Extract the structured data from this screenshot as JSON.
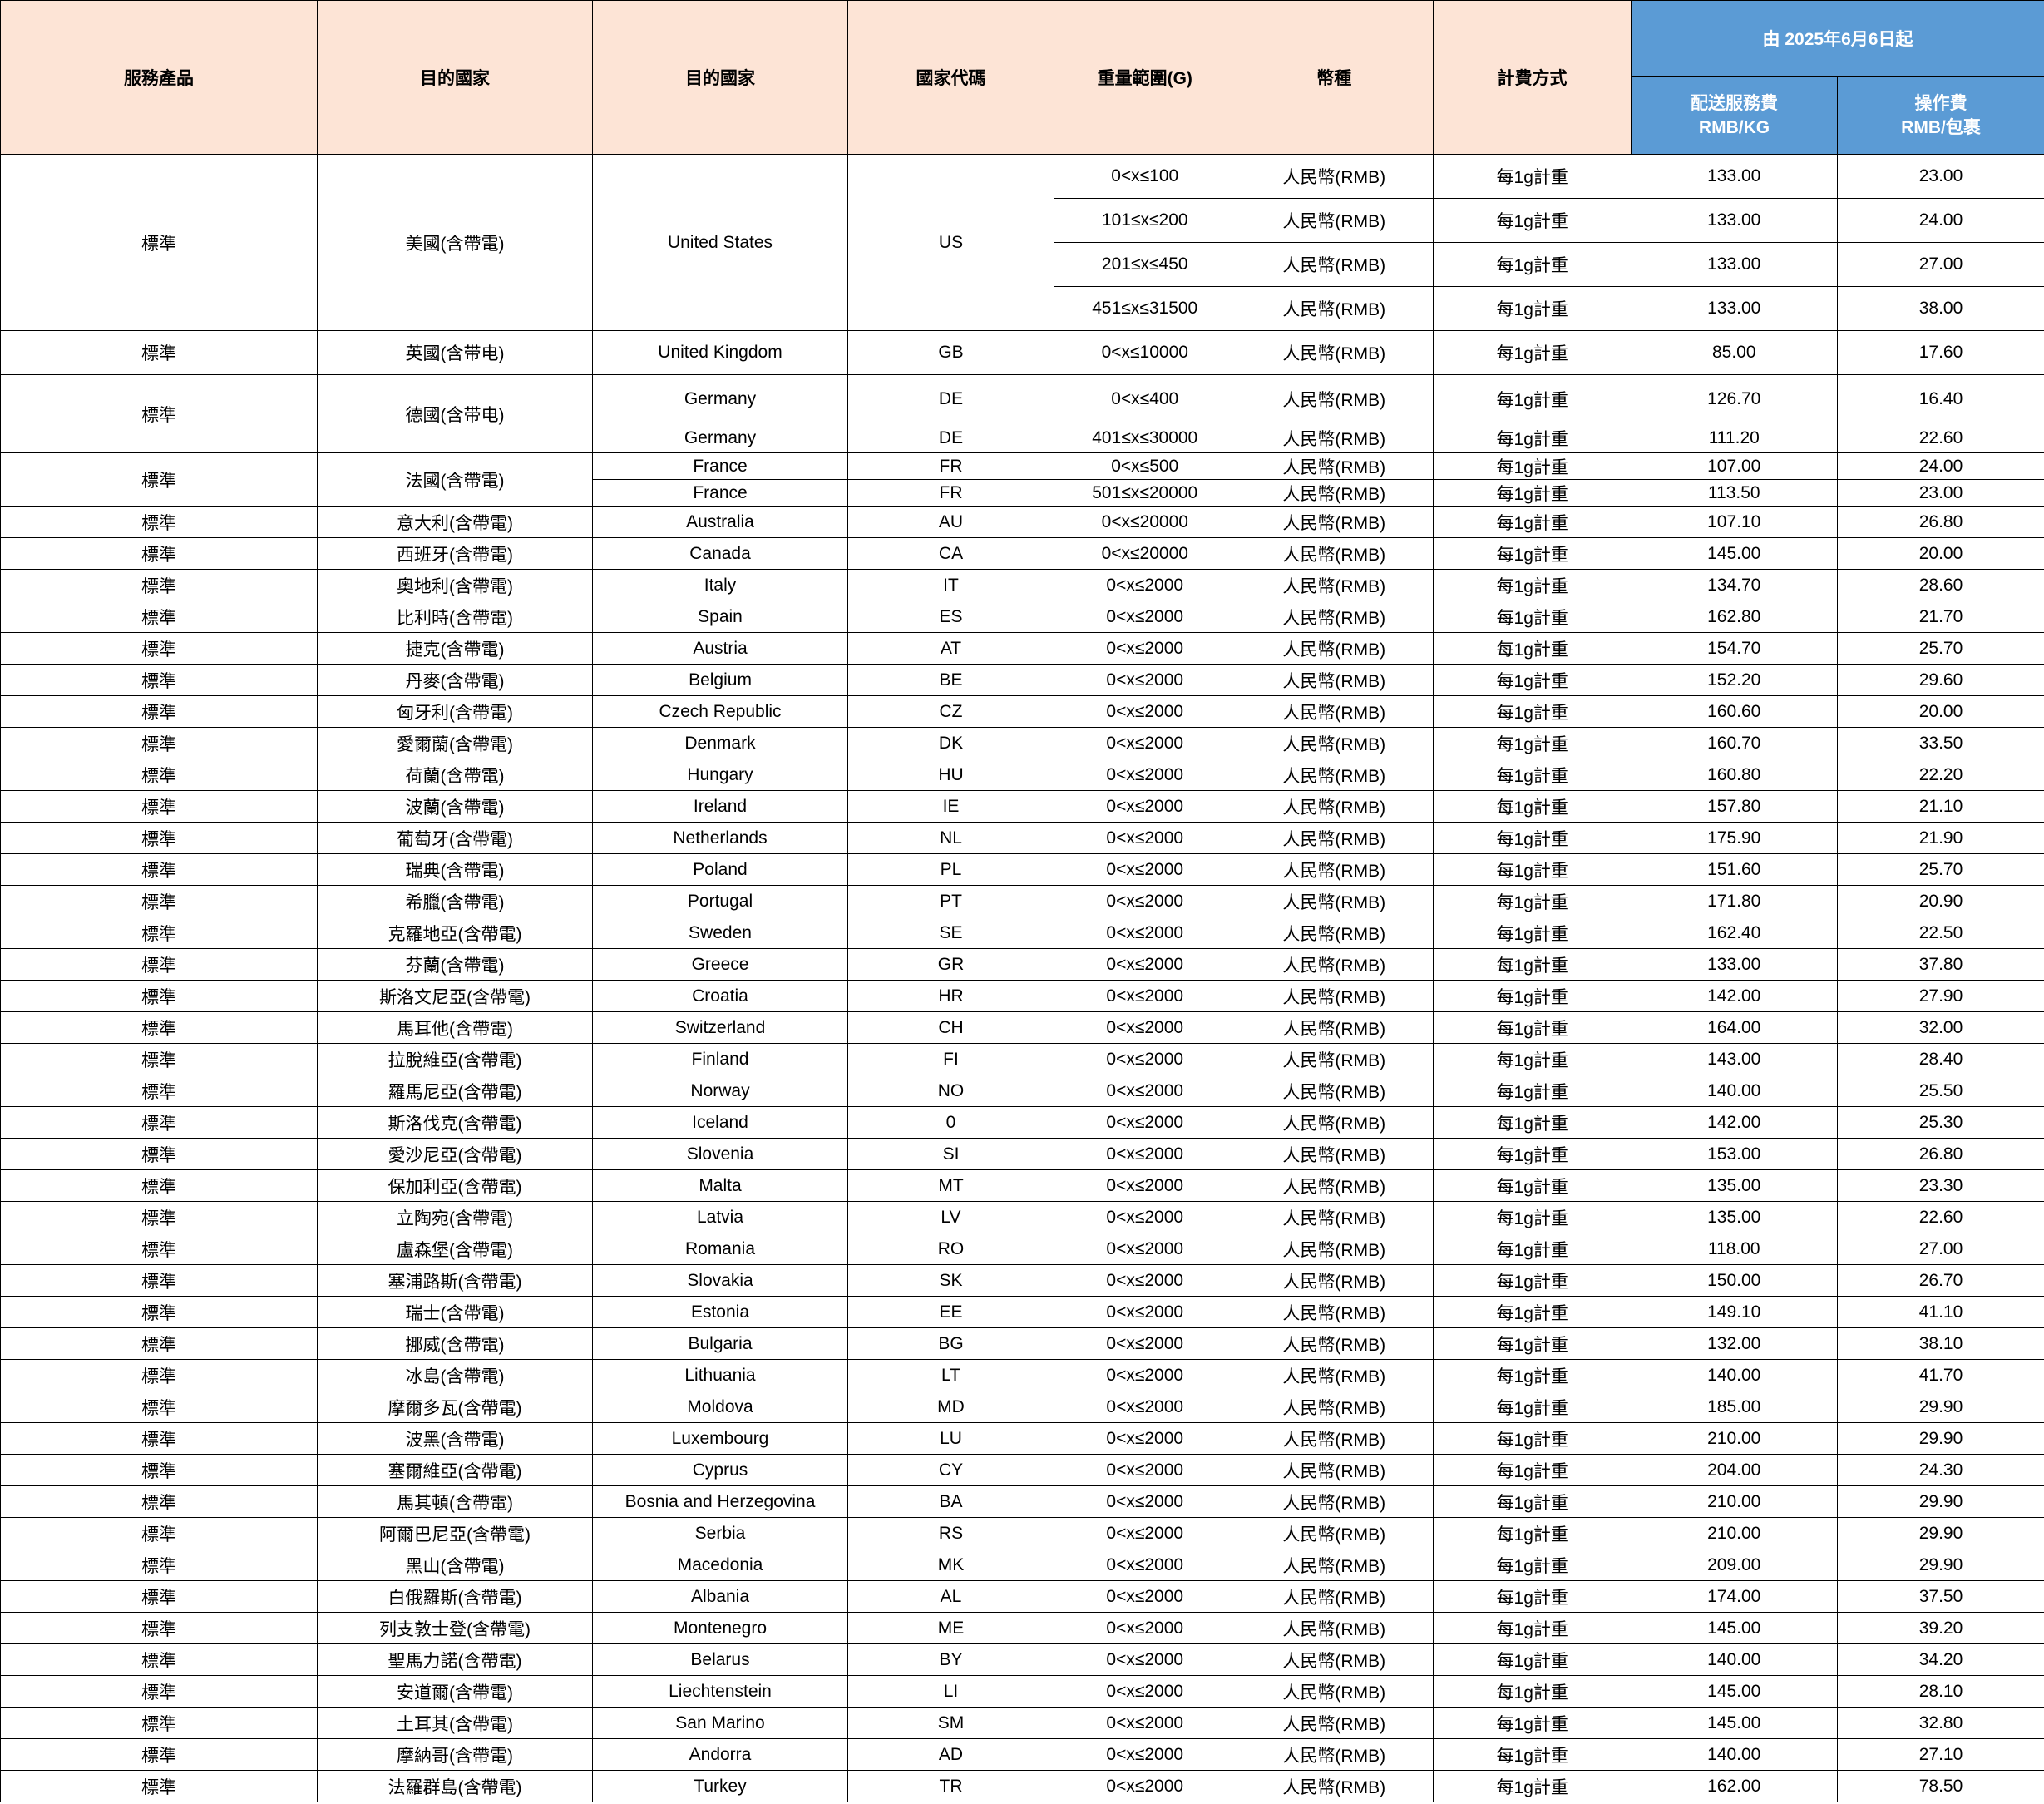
{
  "header": {
    "service_product": "服務產品",
    "destination_cn": "目的國家",
    "destination_en": "目的國家",
    "country_code": "國家代碼",
    "weight_range": "重量範圍(G)",
    "currency": "幣種",
    "billing_method": "計費方式",
    "effective_from": "由 2025年6月6日起",
    "delivery_fee_l1": "配送服務費",
    "delivery_fee_l2": "RMB/KG",
    "handling_fee_l1": "操作費",
    "handling_fee_l2": "RMB/包裹"
  },
  "colors": {
    "header_bg": "#fde4d6",
    "header_blue": "#5b9bd5"
  },
  "groups": [
    {
      "product": "標準",
      "dest_cn": "美國(含帶電)",
      "dest_en": "United States",
      "code": "US",
      "entries": [
        {
          "weight": "0<x≤100",
          "currency": "人民幣(RMB)",
          "billing": "每1g計重",
          "delivery_fee": "133.00",
          "handling_fee": "23.00"
        },
        {
          "weight": "101≤x≤200",
          "currency": "人民幣(RMB)",
          "billing": "每1g計重",
          "delivery_fee": "133.00",
          "handling_fee": "24.00"
        },
        {
          "weight": "201≤x≤450",
          "currency": "人民幣(RMB)",
          "billing": "每1g計重",
          "delivery_fee": "133.00",
          "handling_fee": "27.00"
        },
        {
          "weight": "451≤x≤31500",
          "currency": "人民幣(RMB)",
          "billing": "每1g計重",
          "delivery_fee": "133.00",
          "handling_fee": "38.00"
        }
      ]
    },
    {
      "product": "標準",
      "dest_cn": "英國(含带电)",
      "entries": [
        {
          "dest_en": "United Kingdom",
          "code": "GB",
          "weight": "0<x≤10000",
          "currency": "人民幣(RMB)",
          "billing": "每1g計重",
          "delivery_fee": "85.00",
          "handling_fee": "17.60"
        }
      ]
    },
    {
      "product": "標準",
      "dest_cn": "德國(含带电)",
      "entries": [
        {
          "dest_en": "Germany",
          "code": "DE",
          "weight": "0<x≤400",
          "currency": "人民幣(RMB)",
          "billing": "每1g計重",
          "delivery_fee": "126.70",
          "handling_fee": "16.40"
        },
        {
          "dest_en": "Germany",
          "code": "DE",
          "weight": "401≤x≤30000",
          "currency": "人民幣(RMB)",
          "billing": "每1g計重",
          "delivery_fee": "111.20",
          "handling_fee": "22.60"
        }
      ]
    },
    {
      "product": "標準",
      "dest_cn": "法國(含帶電)",
      "entries": [
        {
          "dest_en": "France",
          "code": "FR",
          "weight": "0<x≤500",
          "currency": "人民幣(RMB)",
          "billing": "每1g計重",
          "delivery_fee": "107.00",
          "handling_fee": "24.00"
        },
        {
          "dest_en": "France",
          "code": "FR",
          "weight": "501≤x≤20000",
          "currency": "人民幣(RMB)",
          "billing": "每1g計重",
          "delivery_fee": "113.50",
          "handling_fee": "23.00"
        }
      ]
    },
    {
      "product": "標準",
      "dest_cn": "意大利(含帶電)",
      "entries": [
        {
          "dest_en": "Australia",
          "code": "AU",
          "weight": "0<x≤20000",
          "currency": "人民幣(RMB)",
          "billing": "每1g計重",
          "delivery_fee": "107.10",
          "handling_fee": "26.80"
        }
      ]
    },
    {
      "product": "標準",
      "dest_cn": "西班牙(含帶電)",
      "entries": [
        {
          "dest_en": "Canada",
          "code": "CA",
          "weight": "0<x≤20000",
          "currency": "人民幣(RMB)",
          "billing": "每1g計重",
          "delivery_fee": "145.00",
          "handling_fee": "20.00"
        }
      ]
    },
    {
      "product": "標準",
      "dest_cn": "奧地利(含帶電)",
      "entries": [
        {
          "dest_en": "Italy",
          "code": "IT",
          "weight": "0<x≤2000",
          "currency": "人民幣(RMB)",
          "billing": "每1g計重",
          "delivery_fee": "134.70",
          "handling_fee": "28.60"
        }
      ]
    },
    {
      "product": "標準",
      "dest_cn": "比利時(含帶電)",
      "entries": [
        {
          "dest_en": "Spain",
          "code": "ES",
          "weight": "0<x≤2000",
          "currency": "人民幣(RMB)",
          "billing": "每1g計重",
          "delivery_fee": "162.80",
          "handling_fee": "21.70"
        }
      ]
    },
    {
      "product": "標準",
      "dest_cn": "捷克(含帶電)",
      "entries": [
        {
          "dest_en": "Austria",
          "code": "AT",
          "weight": "0<x≤2000",
          "currency": "人民幣(RMB)",
          "billing": "每1g計重",
          "delivery_fee": "154.70",
          "handling_fee": "25.70"
        }
      ]
    },
    {
      "product": "標準",
      "dest_cn": "丹麥(含帶電)",
      "entries": [
        {
          "dest_en": "Belgium",
          "code": "BE",
          "weight": "0<x≤2000",
          "currency": "人民幣(RMB)",
          "billing": "每1g計重",
          "delivery_fee": "152.20",
          "handling_fee": "29.60"
        }
      ]
    },
    {
      "product": "標準",
      "dest_cn": "匈牙利(含帶電)",
      "entries": [
        {
          "dest_en": "Czech Republic",
          "code": "CZ",
          "weight": "0<x≤2000",
          "currency": "人民幣(RMB)",
          "billing": "每1g計重",
          "delivery_fee": "160.60",
          "handling_fee": "20.00"
        }
      ]
    },
    {
      "product": "標準",
      "dest_cn": "愛爾蘭(含帶電)",
      "entries": [
        {
          "dest_en": "Denmark",
          "code": "DK",
          "weight": "0<x≤2000",
          "currency": "人民幣(RMB)",
          "billing": "每1g計重",
          "delivery_fee": "160.70",
          "handling_fee": "33.50"
        }
      ]
    },
    {
      "product": "標準",
      "dest_cn": "荷蘭(含帶電)",
      "entries": [
        {
          "dest_en": "Hungary",
          "code": "HU",
          "weight": "0<x≤2000",
          "currency": "人民幣(RMB)",
          "billing": "每1g計重",
          "delivery_fee": "160.80",
          "handling_fee": "22.20"
        }
      ]
    },
    {
      "product": "標準",
      "dest_cn": "波蘭(含帶電)",
      "entries": [
        {
          "dest_en": "Ireland",
          "code": "IE",
          "weight": "0<x≤2000",
          "currency": "人民幣(RMB)",
          "billing": "每1g計重",
          "delivery_fee": "157.80",
          "handling_fee": "21.10"
        }
      ]
    },
    {
      "product": "標準",
      "dest_cn": "葡萄牙(含帶電)",
      "entries": [
        {
          "dest_en": "Netherlands",
          "code": "NL",
          "weight": "0<x≤2000",
          "currency": "人民幣(RMB)",
          "billing": "每1g計重",
          "delivery_fee": "175.90",
          "handling_fee": "21.90"
        }
      ]
    },
    {
      "product": "標準",
      "dest_cn": "瑞典(含帶電)",
      "entries": [
        {
          "dest_en": "Poland",
          "code": "PL",
          "weight": "0<x≤2000",
          "currency": "人民幣(RMB)",
          "billing": "每1g計重",
          "delivery_fee": "151.60",
          "handling_fee": "25.70"
        }
      ]
    },
    {
      "product": "標準",
      "dest_cn": "希臘(含帶電)",
      "entries": [
        {
          "dest_en": "Portugal",
          "code": "PT",
          "weight": "0<x≤2000",
          "currency": "人民幣(RMB)",
          "billing": "每1g計重",
          "delivery_fee": "171.80",
          "handling_fee": "20.90"
        }
      ]
    },
    {
      "product": "標準",
      "dest_cn": "克羅地亞(含帶電)",
      "entries": [
        {
          "dest_en": "Sweden",
          "code": "SE",
          "weight": "0<x≤2000",
          "currency": "人民幣(RMB)",
          "billing": "每1g計重",
          "delivery_fee": "162.40",
          "handling_fee": "22.50"
        }
      ]
    },
    {
      "product": "標準",
      "dest_cn": "芬蘭(含帶電)",
      "entries": [
        {
          "dest_en": "Greece",
          "code": "GR",
          "weight": "0<x≤2000",
          "currency": "人民幣(RMB)",
          "billing": "每1g計重",
          "delivery_fee": "133.00",
          "handling_fee": "37.80"
        }
      ]
    },
    {
      "product": "標準",
      "dest_cn": "斯洛文尼亞(含帶電)",
      "entries": [
        {
          "dest_en": "Croatia",
          "code": "HR",
          "weight": "0<x≤2000",
          "currency": "人民幣(RMB)",
          "billing": "每1g計重",
          "delivery_fee": "142.00",
          "handling_fee": "27.90"
        }
      ]
    },
    {
      "product": "標準",
      "dest_cn": "馬耳他(含帶電)",
      "entries": [
        {
          "dest_en": "Switzerland",
          "code": "CH",
          "weight": "0<x≤2000",
          "currency": "人民幣(RMB)",
          "billing": "每1g計重",
          "delivery_fee": "164.00",
          "handling_fee": "32.00"
        }
      ]
    },
    {
      "product": "標準",
      "dest_cn": "拉脫維亞(含帶電)",
      "entries": [
        {
          "dest_en": "Finland",
          "code": "FI",
          "weight": "0<x≤2000",
          "currency": "人民幣(RMB)",
          "billing": "每1g計重",
          "delivery_fee": "143.00",
          "handling_fee": "28.40"
        }
      ]
    },
    {
      "product": "標準",
      "dest_cn": "羅馬尼亞(含帶電)",
      "entries": [
        {
          "dest_en": "Norway",
          "code": "NO",
          "weight": "0<x≤2000",
          "currency": "人民幣(RMB)",
          "billing": "每1g計重",
          "delivery_fee": "140.00",
          "handling_fee": "25.50"
        }
      ]
    },
    {
      "product": "標準",
      "dest_cn": "斯洛伐克(含帶電)",
      "entries": [
        {
          "dest_en": "Iceland",
          "code": "0",
          "weight": "0<x≤2000",
          "currency": "人民幣(RMB)",
          "billing": "每1g計重",
          "delivery_fee": "142.00",
          "handling_fee": "25.30"
        }
      ]
    },
    {
      "product": "標準",
      "dest_cn": "愛沙尼亞(含帶電)",
      "entries": [
        {
          "dest_en": "Slovenia",
          "code": "SI",
          "weight": "0<x≤2000",
          "currency": "人民幣(RMB)",
          "billing": "每1g計重",
          "delivery_fee": "153.00",
          "handling_fee": "26.80"
        }
      ]
    },
    {
      "product": "標準",
      "dest_cn": "保加利亞(含帶電)",
      "entries": [
        {
          "dest_en": "Malta",
          "code": "MT",
          "weight": "0<x≤2000",
          "currency": "人民幣(RMB)",
          "billing": "每1g計重",
          "delivery_fee": "135.00",
          "handling_fee": "23.30"
        }
      ]
    },
    {
      "product": "標準",
      "dest_cn": "立陶宛(含帶電)",
      "entries": [
        {
          "dest_en": "Latvia",
          "code": "LV",
          "weight": "0<x≤2000",
          "currency": "人民幣(RMB)",
          "billing": "每1g計重",
          "delivery_fee": "135.00",
          "handling_fee": "22.60"
        }
      ]
    },
    {
      "product": "標準",
      "dest_cn": "盧森堡(含帶電)",
      "entries": [
        {
          "dest_en": "Romania",
          "code": "RO",
          "weight": "0<x≤2000",
          "currency": "人民幣(RMB)",
          "billing": "每1g計重",
          "delivery_fee": "118.00",
          "handling_fee": "27.00"
        }
      ]
    },
    {
      "product": "標準",
      "dest_cn": "塞浦路斯(含帶電)",
      "entries": [
        {
          "dest_en": "Slovakia",
          "code": "SK",
          "weight": "0<x≤2000",
          "currency": "人民幣(RMB)",
          "billing": "每1g計重",
          "delivery_fee": "150.00",
          "handling_fee": "26.70"
        }
      ]
    },
    {
      "product": "標準",
      "dest_cn": "瑞士(含帶電)",
      "entries": [
        {
          "dest_en": "Estonia",
          "code": "EE",
          "weight": "0<x≤2000",
          "currency": "人民幣(RMB)",
          "billing": "每1g計重",
          "delivery_fee": "149.10",
          "handling_fee": "41.10"
        }
      ]
    },
    {
      "product": "標準",
      "dest_cn": "挪威(含帶電)",
      "entries": [
        {
          "dest_en": "Bulgaria",
          "code": "BG",
          "weight": "0<x≤2000",
          "currency": "人民幣(RMB)",
          "billing": "每1g計重",
          "delivery_fee": "132.00",
          "handling_fee": "38.10"
        }
      ]
    },
    {
      "product": "標準",
      "dest_cn": "冰島(含帶電)",
      "entries": [
        {
          "dest_en": "Lithuania",
          "code": "LT",
          "weight": "0<x≤2000",
          "currency": "人民幣(RMB)",
          "billing": "每1g計重",
          "delivery_fee": "140.00",
          "handling_fee": "41.70"
        }
      ]
    },
    {
      "product": "標準",
      "dest_cn": "摩爾多瓦(含帶電)",
      "entries": [
        {
          "dest_en": "Moldova",
          "code": "MD",
          "weight": "0<x≤2000",
          "currency": "人民幣(RMB)",
          "billing": "每1g計重",
          "delivery_fee": "185.00",
          "handling_fee": "29.90"
        }
      ]
    },
    {
      "product": "標準",
      "dest_cn": "波黑(含帶電)",
      "entries": [
        {
          "dest_en": "Luxembourg",
          "code": "LU",
          "weight": "0<x≤2000",
          "currency": "人民幣(RMB)",
          "billing": "每1g計重",
          "delivery_fee": "210.00",
          "handling_fee": "29.90"
        }
      ]
    },
    {
      "product": "標準",
      "dest_cn": "塞爾維亞(含帶電)",
      "entries": [
        {
          "dest_en": "Cyprus",
          "code": "CY",
          "weight": "0<x≤2000",
          "currency": "人民幣(RMB)",
          "billing": "每1g計重",
          "delivery_fee": "204.00",
          "handling_fee": "24.30"
        }
      ]
    },
    {
      "product": "標準",
      "dest_cn": "馬其頓(含帶電)",
      "entries": [
        {
          "dest_en": "Bosnia and Herzegovina",
          "code": "BA",
          "weight": "0<x≤2000",
          "currency": "人民幣(RMB)",
          "billing": "每1g計重",
          "delivery_fee": "210.00",
          "handling_fee": "29.90"
        }
      ]
    },
    {
      "product": "標準",
      "dest_cn": "阿爾巴尼亞(含帶電)",
      "entries": [
        {
          "dest_en": "Serbia",
          "code": "RS",
          "weight": "0<x≤2000",
          "currency": "人民幣(RMB)",
          "billing": "每1g計重",
          "delivery_fee": "210.00",
          "handling_fee": "29.90"
        }
      ]
    },
    {
      "product": "標準",
      "dest_cn": "黑山(含帶電)",
      "entries": [
        {
          "dest_en": "Macedonia",
          "code": "MK",
          "weight": "0<x≤2000",
          "currency": "人民幣(RMB)",
          "billing": "每1g計重",
          "delivery_fee": "209.00",
          "handling_fee": "29.90"
        }
      ]
    },
    {
      "product": "標準",
      "dest_cn": "白俄羅斯(含帶電)",
      "entries": [
        {
          "dest_en": "Albania",
          "code": "AL",
          "weight": "0<x≤2000",
          "currency": "人民幣(RMB)",
          "billing": "每1g計重",
          "delivery_fee": "174.00",
          "handling_fee": "37.50"
        }
      ]
    },
    {
      "product": "標準",
      "dest_cn": "列支敦士登(含帶電)",
      "entries": [
        {
          "dest_en": "Montenegro",
          "code": "ME",
          "weight": "0<x≤2000",
          "currency": "人民幣(RMB)",
          "billing": "每1g計重",
          "delivery_fee": "145.00",
          "handling_fee": "39.20"
        }
      ]
    },
    {
      "product": "標準",
      "dest_cn": "聖馬力諾(含帶電)",
      "entries": [
        {
          "dest_en": "Belarus",
          "code": "BY",
          "weight": "0<x≤2000",
          "currency": "人民幣(RMB)",
          "billing": "每1g計重",
          "delivery_fee": "140.00",
          "handling_fee": "34.20"
        }
      ]
    },
    {
      "product": "標準",
      "dest_cn": "安道爾(含帶電)",
      "entries": [
        {
          "dest_en": "Liechtenstein",
          "code": "LI",
          "weight": "0<x≤2000",
          "currency": "人民幣(RMB)",
          "billing": "每1g計重",
          "delivery_fee": "145.00",
          "handling_fee": "28.10"
        }
      ]
    },
    {
      "product": "標準",
      "dest_cn": "土耳其(含帶電)",
      "entries": [
        {
          "dest_en": "San Marino",
          "code": "SM",
          "weight": "0<x≤2000",
          "currency": "人民幣(RMB)",
          "billing": "每1g計重",
          "delivery_fee": "145.00",
          "handling_fee": "32.80"
        }
      ]
    },
    {
      "product": "標準",
      "dest_cn": "摩納哥(含帶電)",
      "entries": [
        {
          "dest_en": "Andorra",
          "code": "AD",
          "weight": "0<x≤2000",
          "currency": "人民幣(RMB)",
          "billing": "每1g計重",
          "delivery_fee": "140.00",
          "handling_fee": "27.10"
        }
      ]
    },
    {
      "product": "標準",
      "dest_cn": "法羅群島(含帶電)",
      "entries": [
        {
          "dest_en": "Turkey",
          "code": "TR",
          "weight": "0<x≤2000",
          "currency": "人民幣(RMB)",
          "billing": "每1g計重",
          "delivery_fee": "162.00",
          "handling_fee": "78.50"
        }
      ]
    }
  ]
}
